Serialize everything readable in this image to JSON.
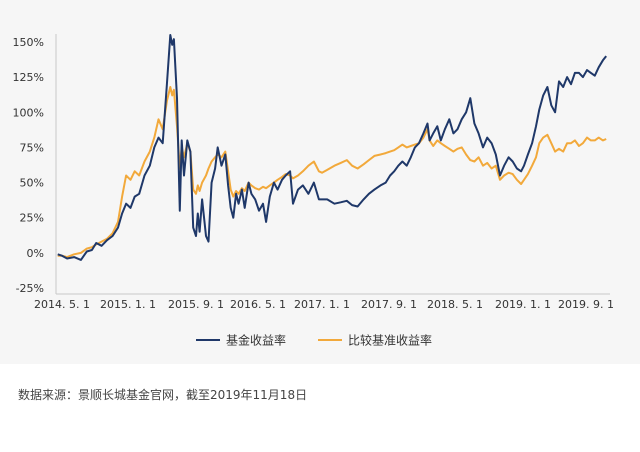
{
  "colors": {
    "fund": "#1f3869",
    "benchmark": "#f2a93b",
    "axis": "#c8c8c8",
    "panel_background": "#f6f6f6"
  },
  "legend": {
    "fund_label": "基金收益率",
    "benchmark_label": "比较基准收益率"
  },
  "source_note": "数据来源：景顺长城基金官网，截至2019年11月18日",
  "chart_data": {
    "type": "line",
    "title": "",
    "xlabel": "",
    "ylabel": "",
    "ylim": [
      -25,
      150
    ],
    "y_ticks": [
      "150%",
      "125%",
      "100%",
      "75%",
      "50%",
      "25%",
      "0%",
      "-25%"
    ],
    "x_ticks": [
      "2014. 5. 1",
      "2015. 1. 1",
      "2015. 9. 1",
      "2016. 5. 1",
      "2017. 1. 1",
      "2017. 9. 1",
      "2018. 5. 1",
      "2019. 1. 1",
      "2019. 9. 1"
    ],
    "grid": false,
    "legend_position": "bottom-center",
    "series": [
      {
        "name": "基金收益率",
        "color": "#1f3869",
        "points": [
          [
            "2014-04-15",
            -1
          ],
          [
            "2014-05-01",
            -2
          ],
          [
            "2014-05-20",
            -4
          ],
          [
            "2014-06-15",
            -3
          ],
          [
            "2014-07-10",
            -5
          ],
          [
            "2014-08-01",
            1
          ],
          [
            "2014-08-20",
            2
          ],
          [
            "2014-09-05",
            7
          ],
          [
            "2014-09-25",
            5
          ],
          [
            "2014-10-15",
            9
          ],
          [
            "2014-11-05",
            12
          ],
          [
            "2014-11-25",
            18
          ],
          [
            "2014-12-10",
            28
          ],
          [
            "2014-12-25",
            35
          ],
          [
            "2015-01-10",
            32
          ],
          [
            "2015-01-25",
            40
          ],
          [
            "2015-02-10",
            42
          ],
          [
            "2015-03-01",
            55
          ],
          [
            "2015-03-20",
            62
          ],
          [
            "2015-04-05",
            75
          ],
          [
            "2015-04-20",
            82
          ],
          [
            "2015-05-05",
            78
          ],
          [
            "2015-05-20",
            120
          ],
          [
            "2015-06-01",
            155
          ],
          [
            "2015-06-08",
            148
          ],
          [
            "2015-06-14",
            152
          ],
          [
            "2015-06-25",
            110
          ],
          [
            "2015-07-05",
            30
          ],
          [
            "2015-07-12",
            80
          ],
          [
            "2015-07-20",
            55
          ],
          [
            "2015-08-01",
            80
          ],
          [
            "2015-08-12",
            72
          ],
          [
            "2015-08-22",
            18
          ],
          [
            "2015-09-01",
            12
          ],
          [
            "2015-09-08",
            28
          ],
          [
            "2015-09-15",
            15
          ],
          [
            "2015-09-25",
            38
          ],
          [
            "2015-10-10",
            12
          ],
          [
            "2015-10-20",
            8
          ],
          [
            "2015-11-01",
            50
          ],
          [
            "2015-11-15",
            60
          ],
          [
            "2015-11-25",
            75
          ],
          [
            "2015-12-10",
            62
          ],
          [
            "2015-12-25",
            70
          ],
          [
            "2016-01-05",
            48
          ],
          [
            "2016-01-15",
            32
          ],
          [
            "2016-01-25",
            25
          ],
          [
            "2016-02-05",
            42
          ],
          [
            "2016-02-15",
            35
          ],
          [
            "2016-02-28",
            45
          ],
          [
            "2016-03-10",
            32
          ],
          [
            "2016-03-25",
            50
          ],
          [
            "2016-04-05",
            42
          ],
          [
            "2016-04-20",
            38
          ],
          [
            "2016-05-05",
            30
          ],
          [
            "2016-05-20",
            35
          ],
          [
            "2016-06-01",
            22
          ],
          [
            "2016-06-15",
            40
          ],
          [
            "2016-07-01",
            50
          ],
          [
            "2016-07-15",
            45
          ],
          [
            "2016-08-01",
            52
          ],
          [
            "2016-08-15",
            55
          ],
          [
            "2016-09-01",
            58
          ],
          [
            "2016-09-12",
            35
          ],
          [
            "2016-10-01",
            45
          ],
          [
            "2016-10-20",
            48
          ],
          [
            "2016-11-10",
            42
          ],
          [
            "2016-12-01",
            50
          ],
          [
            "2016-12-20",
            38
          ],
          [
            "2017-01-01",
            38
          ],
          [
            "2017-01-20",
            38
          ],
          [
            "2017-02-15",
            35
          ],
          [
            "2017-03-10",
            36
          ],
          [
            "2017-04-01",
            37
          ],
          [
            "2017-04-20",
            34
          ],
          [
            "2017-05-10",
            33
          ],
          [
            "2017-06-01",
            38
          ],
          [
            "2017-06-20",
            42
          ],
          [
            "2017-07-10",
            45
          ],
          [
            "2017-08-01",
            48
          ],
          [
            "2017-08-20",
            50
          ],
          [
            "2017-09-05",
            55
          ],
          [
            "2017-09-20",
            58
          ],
          [
            "2017-10-05",
            62
          ],
          [
            "2017-10-20",
            65
          ],
          [
            "2017-11-05",
            62
          ],
          [
            "2017-11-20",
            68
          ],
          [
            "2017-12-05",
            75
          ],
          [
            "2017-12-20",
            78
          ],
          [
            "2018-01-05",
            85
          ],
          [
            "2018-01-20",
            92
          ],
          [
            "2018-01-28",
            80
          ],
          [
            "2018-02-10",
            85
          ],
          [
            "2018-02-25",
            90
          ],
          [
            "2018-03-10",
            80
          ],
          [
            "2018-03-25",
            88
          ],
          [
            "2018-04-10",
            95
          ],
          [
            "2018-04-25",
            85
          ],
          [
            "2018-05-10",
            88
          ],
          [
            "2018-05-25",
            95
          ],
          [
            "2018-06-10",
            100
          ],
          [
            "2018-06-25",
            110
          ],
          [
            "2018-07-10",
            92
          ],
          [
            "2018-07-25",
            85
          ],
          [
            "2018-08-10",
            75
          ],
          [
            "2018-08-25",
            82
          ],
          [
            "2018-09-10",
            78
          ],
          [
            "2018-09-25",
            70
          ],
          [
            "2018-10-10",
            55
          ],
          [
            "2018-10-25",
            62
          ],
          [
            "2018-11-10",
            68
          ],
          [
            "2018-11-25",
            65
          ],
          [
            "2018-12-10",
            60
          ],
          [
            "2018-12-25",
            58
          ],
          [
            "2019-01-05",
            62
          ],
          [
            "2019-01-20",
            70
          ],
          [
            "2019-02-05",
            78
          ],
          [
            "2019-02-20",
            90
          ],
          [
            "2019-03-05",
            102
          ],
          [
            "2019-03-20",
            112
          ],
          [
            "2019-04-05",
            118
          ],
          [
            "2019-04-20",
            105
          ],
          [
            "2019-05-05",
            100
          ],
          [
            "2019-05-20",
            122
          ],
          [
            "2019-06-05",
            118
          ],
          [
            "2019-06-20",
            125
          ],
          [
            "2019-07-05",
            120
          ],
          [
            "2019-07-20",
            128
          ],
          [
            "2019-08-05",
            128
          ],
          [
            "2019-08-20",
            125
          ],
          [
            "2019-09-05",
            130
          ],
          [
            "2019-09-20",
            128
          ],
          [
            "2019-10-05",
            126
          ],
          [
            "2019-10-20",
            132
          ],
          [
            "2019-11-05",
            137
          ],
          [
            "2019-11-18",
            140
          ]
        ]
      },
      {
        "name": "比较基准收益率",
        "color": "#f2a93b",
        "points": [
          [
            "2014-04-15",
            -2
          ],
          [
            "2014-05-01",
            -2
          ],
          [
            "2014-05-20",
            -3
          ],
          [
            "2014-06-15",
            -1
          ],
          [
            "2014-07-10",
            0
          ],
          [
            "2014-08-01",
            3
          ],
          [
            "2014-08-20",
            4
          ],
          [
            "2014-09-05",
            6
          ],
          [
            "2014-09-25",
            8
          ],
          [
            "2014-10-15",
            10
          ],
          [
            "2014-11-05",
            14
          ],
          [
            "2014-11-25",
            22
          ],
          [
            "2014-12-10",
            40
          ],
          [
            "2014-12-25",
            55
          ],
          [
            "2015-01-10",
            52
          ],
          [
            "2015-01-25",
            58
          ],
          [
            "2015-02-10",
            55
          ],
          [
            "2015-03-01",
            65
          ],
          [
            "2015-03-20",
            72
          ],
          [
            "2015-04-05",
            82
          ],
          [
            "2015-04-20",
            95
          ],
          [
            "2015-05-05",
            88
          ],
          [
            "2015-05-20",
            108
          ],
          [
            "2015-06-01",
            118
          ],
          [
            "2015-06-08",
            112
          ],
          [
            "2015-06-14",
            116
          ],
          [
            "2015-06-25",
            90
          ],
          [
            "2015-07-05",
            60
          ],
          [
            "2015-07-12",
            75
          ],
          [
            "2015-07-20",
            68
          ],
          [
            "2015-08-01",
            78
          ],
          [
            "2015-08-12",
            72
          ],
          [
            "2015-08-22",
            45
          ],
          [
            "2015-09-01",
            42
          ],
          [
            "2015-09-08",
            48
          ],
          [
            "2015-09-15",
            44
          ],
          [
            "2015-09-25",
            50
          ],
          [
            "2015-10-10",
            55
          ],
          [
            "2015-10-20",
            60
          ],
          [
            "2015-11-01",
            65
          ],
          [
            "2015-11-15",
            68
          ],
          [
            "2015-11-25",
            70
          ],
          [
            "2015-12-10",
            68
          ],
          [
            "2015-12-25",
            72
          ],
          [
            "2016-01-05",
            58
          ],
          [
            "2016-01-15",
            45
          ],
          [
            "2016-01-25",
            40
          ],
          [
            "2016-02-05",
            44
          ],
          [
            "2016-02-15",
            42
          ],
          [
            "2016-02-28",
            46
          ],
          [
            "2016-03-10",
            44
          ],
          [
            "2016-03-25",
            50
          ],
          [
            "2016-04-05",
            48
          ],
          [
            "2016-04-20",
            46
          ],
          [
            "2016-05-05",
            45
          ],
          [
            "2016-05-20",
            47
          ],
          [
            "2016-06-01",
            46
          ],
          [
            "2016-06-15",
            48
          ],
          [
            "2016-07-01",
            50
          ],
          [
            "2016-07-15",
            52
          ],
          [
            "2016-08-01",
            54
          ],
          [
            "2016-08-15",
            56
          ],
          [
            "2016-09-01",
            55
          ],
          [
            "2016-09-12",
            53
          ],
          [
            "2016-10-01",
            55
          ],
          [
            "2016-10-20",
            58
          ],
          [
            "2016-11-10",
            62
          ],
          [
            "2016-12-01",
            65
          ],
          [
            "2016-12-20",
            58
          ],
          [
            "2017-01-01",
            57
          ],
          [
            "2017-01-20",
            59
          ],
          [
            "2017-02-15",
            62
          ],
          [
            "2017-03-10",
            64
          ],
          [
            "2017-04-01",
            66
          ],
          [
            "2017-04-20",
            62
          ],
          [
            "2017-05-10",
            60
          ],
          [
            "2017-06-01",
            63
          ],
          [
            "2017-06-20",
            66
          ],
          [
            "2017-07-10",
            69
          ],
          [
            "2017-08-01",
            70
          ],
          [
            "2017-08-20",
            71
          ],
          [
            "2017-09-05",
            72
          ],
          [
            "2017-09-20",
            73
          ],
          [
            "2017-10-05",
            75
          ],
          [
            "2017-10-20",
            77
          ],
          [
            "2017-11-05",
            75
          ],
          [
            "2017-11-20",
            76
          ],
          [
            "2017-12-05",
            77
          ],
          [
            "2017-12-20",
            78
          ],
          [
            "2018-01-05",
            82
          ],
          [
            "2018-01-20",
            88
          ],
          [
            "2018-01-28",
            80
          ],
          [
            "2018-02-10",
            76
          ],
          [
            "2018-02-25",
            80
          ],
          [
            "2018-03-10",
            78
          ],
          [
            "2018-03-25",
            76
          ],
          [
            "2018-04-10",
            74
          ],
          [
            "2018-04-25",
            72
          ],
          [
            "2018-05-10",
            74
          ],
          [
            "2018-05-25",
            75
          ],
          [
            "2018-06-10",
            70
          ],
          [
            "2018-06-25",
            66
          ],
          [
            "2018-07-10",
            65
          ],
          [
            "2018-07-25",
            68
          ],
          [
            "2018-08-10",
            62
          ],
          [
            "2018-08-25",
            64
          ],
          [
            "2018-09-10",
            60
          ],
          [
            "2018-09-25",
            62
          ],
          [
            "2018-10-10",
            52
          ],
          [
            "2018-10-25",
            55
          ],
          [
            "2018-11-10",
            57
          ],
          [
            "2018-11-25",
            56
          ],
          [
            "2018-12-10",
            52
          ],
          [
            "2018-12-25",
            49
          ],
          [
            "2019-01-05",
            52
          ],
          [
            "2019-01-20",
            56
          ],
          [
            "2019-02-05",
            62
          ],
          [
            "2019-02-20",
            68
          ],
          [
            "2019-03-05",
            78
          ],
          [
            "2019-03-20",
            82
          ],
          [
            "2019-04-05",
            84
          ],
          [
            "2019-04-20",
            78
          ],
          [
            "2019-05-05",
            72
          ],
          [
            "2019-05-20",
            74
          ],
          [
            "2019-06-05",
            72
          ],
          [
            "2019-06-20",
            78
          ],
          [
            "2019-07-05",
            78
          ],
          [
            "2019-07-20",
            80
          ],
          [
            "2019-08-05",
            76
          ],
          [
            "2019-08-20",
            78
          ],
          [
            "2019-09-05",
            82
          ],
          [
            "2019-09-20",
            80
          ],
          [
            "2019-10-05",
            80
          ],
          [
            "2019-10-20",
            82
          ],
          [
            "2019-11-05",
            80
          ],
          [
            "2019-11-18",
            81
          ]
        ]
      }
    ]
  }
}
